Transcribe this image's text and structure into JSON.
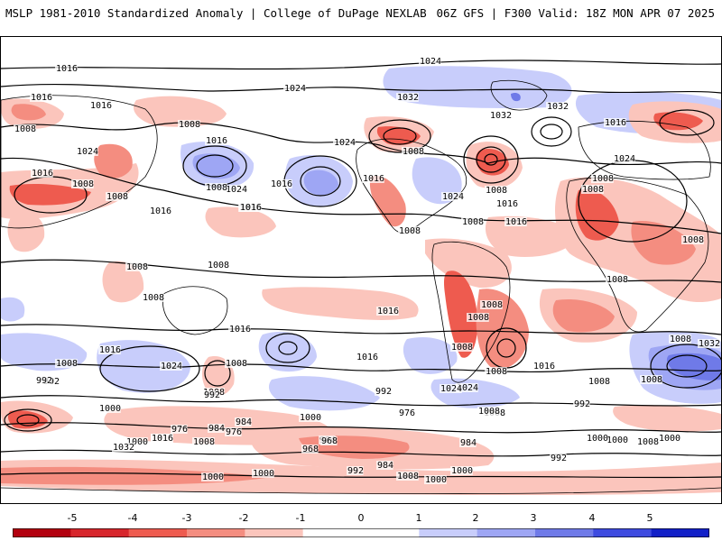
{
  "header": {
    "title_left": "MSLP 1981-2010 Standardized Anomaly | College of DuPage NEXLAB",
    "title_right": "06Z GFS | F300 Valid: 18Z MON APR 07 2025"
  },
  "colors": {
    "neg_5": "#b3000f",
    "neg_4": "#d7262c",
    "neg_3": "#ee5b4f",
    "neg_2": "#f48d80",
    "neg_1": "#fbc5bc",
    "zero": "#ffffff",
    "pos_1": "#c8cdfb",
    "pos_2": "#9ea6f4",
    "pos_3": "#6f7ae8",
    "pos_4": "#3e4be0",
    "pos_5": "#1220c8"
  },
  "colorbar": {
    "ticks": [
      "-5",
      "-4",
      "-3",
      "-2",
      "-1",
      "0",
      "1",
      "2",
      "3",
      "4",
      "5"
    ]
  },
  "isobar_labels": [
    "1016",
    "1024",
    "1032",
    "1032",
    "1016",
    "1024",
    "1032",
    "1016",
    "1008",
    "1016",
    "1008",
    "1024",
    "1008",
    "1008",
    "1016",
    "1008",
    "1024",
    "1024",
    "1008",
    "1008",
    "1016",
    "1016",
    "1024",
    "1008",
    "1016",
    "1016",
    "1024",
    "1016",
    "1016",
    "1016",
    "1008",
    "1008",
    "1008",
    "1008",
    "1008",
    "1008",
    "1008",
    "1008",
    "1008",
    "1008",
    "1008",
    "1008",
    "1016",
    "1016",
    "1016",
    "1016",
    "1024",
    "1032",
    "1008",
    "1008",
    "1008",
    "1008",
    "1008",
    "1016",
    "1016",
    "1024",
    "1008",
    "992",
    "992",
    "1016",
    "1000",
    "1000",
    "992",
    "1024",
    "1008",
    "1000",
    "992",
    "1000",
    "1008",
    "992",
    "976",
    "984",
    "976",
    "1016",
    "1000",
    "1032",
    "1008",
    "984",
    "968",
    "984",
    "976",
    "984",
    "1000",
    "1008",
    "968",
    "984",
    "992",
    "1008",
    "1000",
    "1000",
    "1000",
    "992",
    "1000"
  ]
}
